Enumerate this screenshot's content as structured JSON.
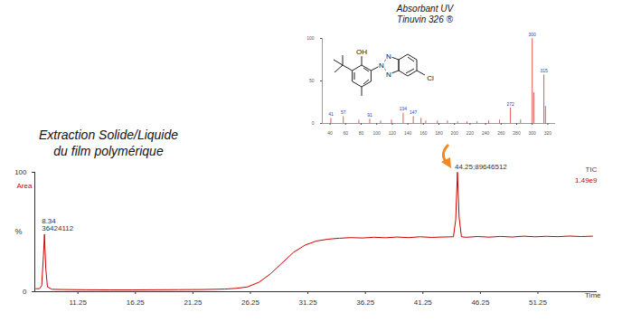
{
  "chart_data": [
    {
      "type": "line",
      "title": [
        "Extraction Solide/Liquide",
        "du film polymérique"
      ],
      "xlabel": "Time",
      "ylabel": "%",
      "x": [
        7.6,
        7.9,
        8.1,
        8.25,
        8.34,
        8.45,
        8.6,
        9,
        10,
        12,
        14,
        16,
        18,
        20,
        22,
        24,
        25,
        26,
        27,
        28,
        29,
        30,
        31,
        32,
        33,
        34,
        35,
        36,
        37,
        38,
        39,
        40,
        41,
        42,
        43,
        43.9,
        44.1,
        44.25,
        44.4,
        44.6,
        45,
        46,
        47,
        48,
        49,
        50,
        51,
        52,
        53,
        54,
        55,
        56
      ],
      "series": [
        {
          "name": "TIC",
          "color": "#cc0000",
          "values": [
            2.5,
            2.5,
            5,
            30,
            48,
            20,
            4,
            2,
            1.8,
            1.6,
            1.5,
            1.5,
            1.6,
            1.7,
            1.8,
            2.2,
            2.8,
            4,
            8,
            15,
            24,
            33,
            39,
            42.5,
            44,
            44.8,
            45.3,
            45,
            45.6,
            45.2,
            45.8,
            45.3,
            46,
            45.5,
            45.8,
            46,
            60,
            100,
            62,
            46,
            45.6,
            46.2,
            45.7,
            46.3,
            45.8,
            46.5,
            46,
            46.4,
            46.1,
            46.6,
            46.2,
            46.5
          ]
        }
      ],
      "annotations": [
        {
          "text": "Area"
        },
        {
          "text": "1.49e9"
        },
        {
          "x": 8.34,
          "y": 48,
          "text": [
            "8.34",
            "36424112"
          ]
        },
        {
          "x": 44.25,
          "y": 100,
          "text": [
            "44.25;89646512"
          ]
        }
      ],
      "xlim": [
        7.5,
        56.4
      ],
      "xticks": [
        11.25,
        16.25,
        21.25,
        26.25,
        31.25,
        36.25,
        41.25,
        46.25,
        51.25
      ],
      "ylim": [
        0,
        100
      ],
      "yticks": [
        0,
        100
      ]
    },
    {
      "type": "bar",
      "title": [
        "Absorbant UV",
        "Tinuvin 326 ®"
      ],
      "x": [
        41,
        57,
        77,
        91,
        105,
        119,
        134,
        147,
        157,
        163,
        178,
        191,
        204,
        216,
        229,
        244,
        258,
        272,
        285,
        300,
        302,
        315,
        317
      ],
      "values": [
        6,
        8,
        4,
        5,
        3,
        4,
        12,
        8,
        6,
        3,
        3,
        3,
        2,
        2,
        2,
        3,
        4,
        18,
        4,
        100,
        36,
        57,
        20
      ],
      "color": "#e05a5a",
      "annotations": [
        {
          "x": 41,
          "y": 6,
          "text": "41"
        },
        {
          "x": 57,
          "y": 8,
          "text": "57"
        },
        {
          "x": 91,
          "y": 5,
          "text": "91"
        },
        {
          "x": 134,
          "y": 12,
          "text": "134"
        },
        {
          "x": 147,
          "y": 8,
          "text": "147"
        },
        {
          "x": 272,
          "y": 18,
          "text": "272"
        },
        {
          "x": 300,
          "y": 100,
          "text": "300"
        },
        {
          "x": 315,
          "y": 57,
          "text": "315"
        }
      ],
      "xlim": [
        30,
        330
      ],
      "xticks": [
        40,
        60,
        80,
        100,
        120,
        140,
        160,
        180,
        200,
        220,
        240,
        260,
        280,
        300,
        320
      ],
      "ylim": [
        0,
        100
      ],
      "yticks": [
        0,
        50,
        100
      ]
    }
  ],
  "structure": {
    "atoms": [
      "OH",
      "N",
      "N",
      "N",
      "Cl"
    ]
  }
}
